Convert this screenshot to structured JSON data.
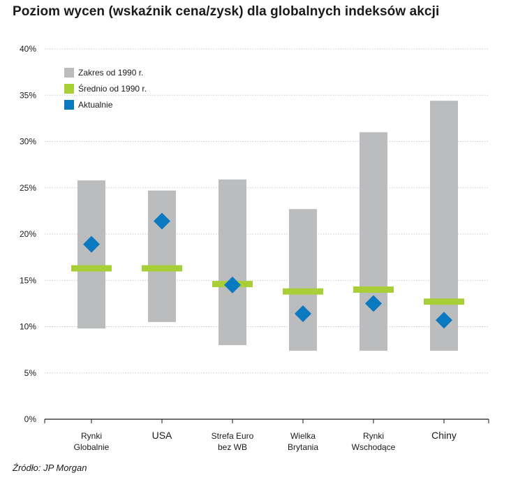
{
  "chart_data": {
    "type": "range-bar",
    "title": "Poziom wycen (wskaźnik cena/zysk) dla globalnych indeksów akcji",
    "source": "Źródło: JP Morgan",
    "ylim": [
      0,
      40
    ],
    "yticks": [
      0,
      5,
      10,
      15,
      20,
      25,
      30,
      35,
      40
    ],
    "ytick_labels": [
      "0%",
      "5%",
      "10%",
      "15%",
      "20%",
      "25%",
      "30%",
      "35%",
      "40%"
    ],
    "grid": true,
    "legend_position": "top-left",
    "legend": [
      {
        "key": "range",
        "label": "Zakres od 1990 r.",
        "color": "#bbbcbe"
      },
      {
        "key": "avg",
        "label": "Średnio od 1990 r.",
        "color": "#a8cf38"
      },
      {
        "key": "current",
        "label": "Aktualnie",
        "color": "#0a79c0"
      }
    ],
    "categories": [
      {
        "label_lines": [
          "Rynki",
          "Globalnie"
        ],
        "min": 9.8,
        "max": 25.8,
        "avg": 16.3,
        "current": 18.9
      },
      {
        "label_lines": [
          "USA"
        ],
        "min": 10.5,
        "max": 24.7,
        "avg": 16.3,
        "current": 21.4
      },
      {
        "label_lines": [
          "Strefa Euro",
          "bez WB"
        ],
        "min": 8.0,
        "max": 25.9,
        "avg": 14.6,
        "current": 14.5
      },
      {
        "label_lines": [
          "Wielka",
          "Brytania"
        ],
        "min": 7.4,
        "max": 22.7,
        "avg": 13.8,
        "current": 11.4
      },
      {
        "label_lines": [
          "Rynki",
          "Wschodące"
        ],
        "min": 7.4,
        "max": 31.0,
        "avg": 14.0,
        "current": 12.5
      },
      {
        "label_lines": [
          "Chiny"
        ],
        "min": 7.4,
        "max": 34.4,
        "avg": 12.7,
        "current": 10.7
      }
    ]
  }
}
